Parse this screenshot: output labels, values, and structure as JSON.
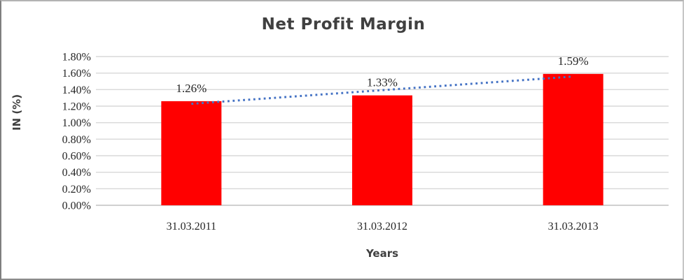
{
  "chart_data": {
    "type": "bar",
    "title": "Net Profit Margin",
    "xlabel": "Years",
    "ylabel": "IN (%)",
    "categories": [
      "31.03.2011",
      "31.03.2012",
      "31.03.2013"
    ],
    "values": [
      1.26,
      1.33,
      1.59
    ],
    "data_labels": [
      "1.26%",
      "1.33%",
      "1.59%"
    ],
    "ylim": [
      0,
      1.8
    ],
    "ytick_step": 0.2,
    "ytick_labels": [
      "0.00%",
      "0.20%",
      "0.40%",
      "0.60%",
      "0.80%",
      "1.00%",
      "1.20%",
      "1.40%",
      "1.60%",
      "1.80%"
    ],
    "grid": true,
    "legend": "none",
    "trendline": {
      "type": "linear",
      "style": "dotted"
    },
    "colors": {
      "bar": "#FF0000",
      "trendline": "#4472C4",
      "gridline": "#D9D9D9",
      "axis_line": "#C0C0C0",
      "title_text": "#404040",
      "tick_text": "#262626"
    }
  }
}
